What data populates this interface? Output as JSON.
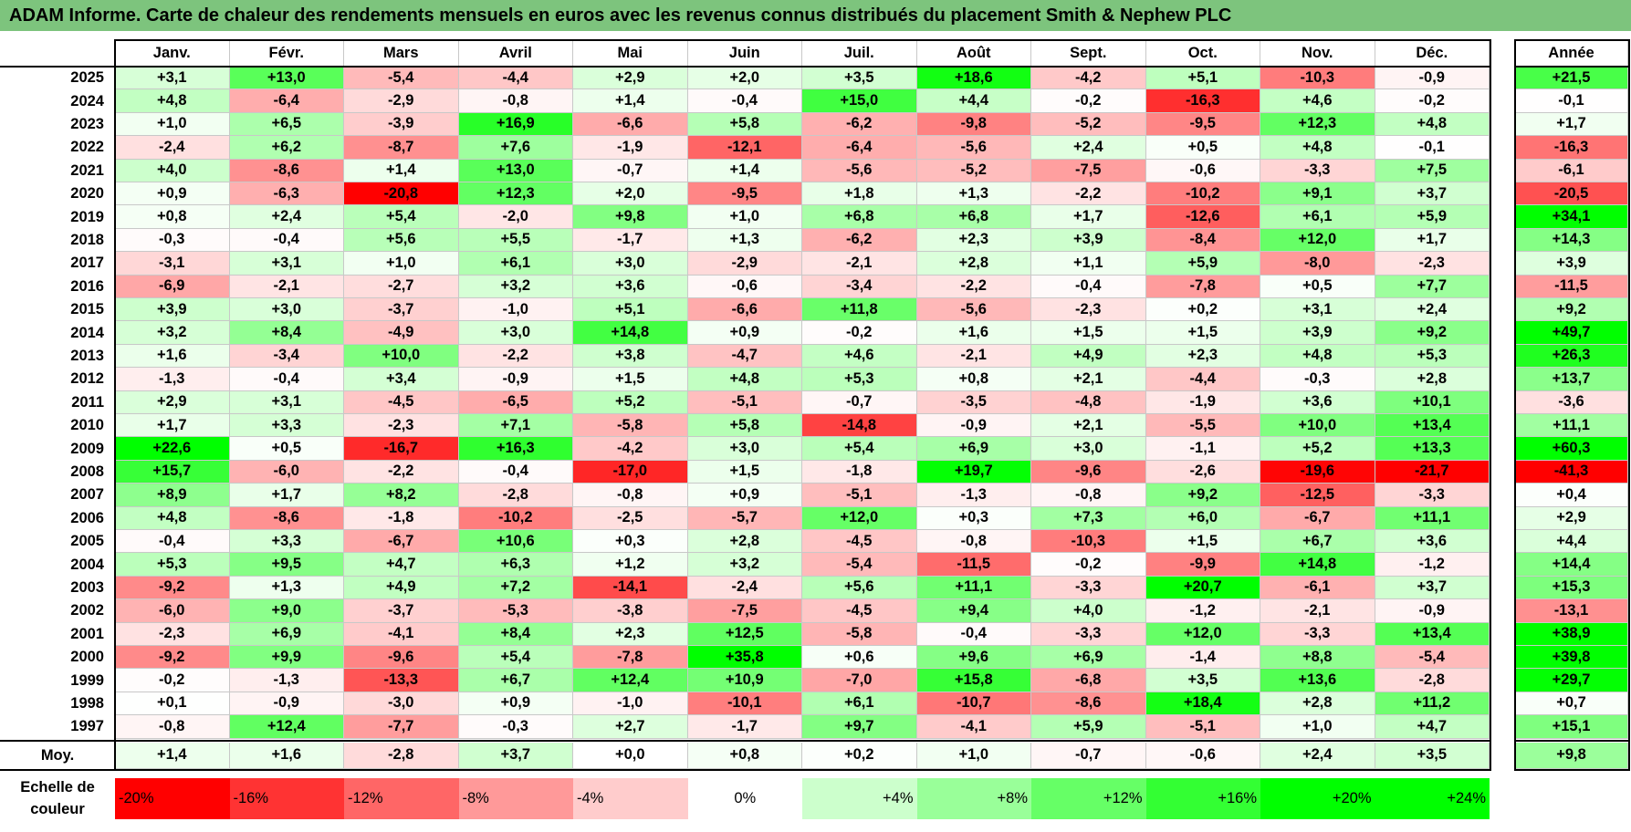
{
  "title": "ADAM Informe. Carte de chaleur des rendements mensuels en euros avec les revenus connus distribués du placement Smith & Nephew PLC",
  "months": [
    "Janv.",
    "Févr.",
    "Mars",
    "Avril",
    "Mai",
    "Juin",
    "Juil.",
    "Août",
    "Sept.",
    "Oct.",
    "Nov.",
    "Déc."
  ],
  "year_col_label": "Année",
  "avg_label": "Moy.",
  "legend_label": "Echelle de couleur",
  "chart_data": {
    "type": "heatmap",
    "title": "ADAM Informe. Carte de chaleur des rendements mensuels en euros avec les revenus connus distribués du placement Smith & Nephew PLC",
    "xlabel": "",
    "ylabel": "",
    "rows": [
      {
        "year": "2025",
        "values": [
          "+3,1",
          "+13,0",
          "-5,4",
          "-4,4",
          "+2,9",
          "+2,0",
          "+3,5",
          "+18,6",
          "-4,2",
          "+5,1",
          "-10,3",
          "-0,9"
        ],
        "annual": "+21,5"
      },
      {
        "year": "2024",
        "values": [
          "+4,8",
          "-6,4",
          "-2,9",
          "-0,8",
          "+1,4",
          "-0,4",
          "+15,0",
          "+4,4",
          "-0,2",
          "-16,3",
          "+4,6",
          "-0,2"
        ],
        "annual": "-0,1"
      },
      {
        "year": "2023",
        "values": [
          "+1,0",
          "+6,5",
          "-3,9",
          "+16,9",
          "-6,6",
          "+5,8",
          "-6,2",
          "-9,8",
          "-5,2",
          "-9,5",
          "+12,3",
          "+4,8"
        ],
        "annual": "+1,7"
      },
      {
        "year": "2022",
        "values": [
          "-2,4",
          "+6,2",
          "-8,7",
          "+7,6",
          "-1,9",
          "-12,1",
          "-6,4",
          "-5,6",
          "+2,4",
          "+0,5",
          "+4,8",
          "-0,1"
        ],
        "annual": "-16,3"
      },
      {
        "year": "2021",
        "values": [
          "+4,0",
          "-8,6",
          "+1,4",
          "+13,0",
          "-0,7",
          "+1,4",
          "-5,6",
          "-5,2",
          "-7,5",
          "-0,6",
          "-3,3",
          "+7,5"
        ],
        "annual": "-6,1"
      },
      {
        "year": "2020",
        "values": [
          "+0,9",
          "-6,3",
          "-20,8",
          "+12,3",
          "+2,0",
          "-9,5",
          "+1,8",
          "+1,3",
          "-2,2",
          "-10,2",
          "+9,1",
          "+3,7"
        ],
        "annual": "-20,5"
      },
      {
        "year": "2019",
        "values": [
          "+0,8",
          "+2,4",
          "+5,4",
          "-2,0",
          "+9,8",
          "+1,0",
          "+6,8",
          "+6,8",
          "+1,7",
          "-12,6",
          "+6,1",
          "+5,9"
        ],
        "annual": "+34,1"
      },
      {
        "year": "2018",
        "values": [
          "-0,3",
          "-0,4",
          "+5,6",
          "+5,5",
          "-1,7",
          "+1,3",
          "-6,2",
          "+2,3",
          "+3,9",
          "-8,4",
          "+12,0",
          "+1,7"
        ],
        "annual": "+14,3"
      },
      {
        "year": "2017",
        "values": [
          "-3,1",
          "+3,1",
          "+1,0",
          "+6,1",
          "+3,0",
          "-2,9",
          "-2,1",
          "+2,8",
          "+1,1",
          "+5,9",
          "-8,0",
          "-2,3"
        ],
        "annual": "+3,9"
      },
      {
        "year": "2016",
        "values": [
          "-6,9",
          "-2,1",
          "-2,7",
          "+3,2",
          "+3,6",
          "-0,6",
          "-3,4",
          "-2,2",
          "-0,4",
          "-7,8",
          "+0,5",
          "+7,7"
        ],
        "annual": "-11,5"
      },
      {
        "year": "2015",
        "values": [
          "+3,9",
          "+3,0",
          "-3,7",
          "-1,0",
          "+5,1",
          "-6,6",
          "+11,8",
          "-5,6",
          "-2,3",
          "+0,2",
          "+3,1",
          "+2,4"
        ],
        "annual": "+9,2"
      },
      {
        "year": "2014",
        "values": [
          "+3,2",
          "+8,4",
          "-4,9",
          "+3,0",
          "+14,8",
          "+0,9",
          "-0,2",
          "+1,6",
          "+1,5",
          "+1,5",
          "+3,9",
          "+9,2"
        ],
        "annual": "+49,7"
      },
      {
        "year": "2013",
        "values": [
          "+1,6",
          "-3,4",
          "+10,0",
          "-2,2",
          "+3,8",
          "-4,7",
          "+4,6",
          "-2,1",
          "+4,9",
          "+2,3",
          "+4,8",
          "+5,3"
        ],
        "annual": "+26,3"
      },
      {
        "year": "2012",
        "values": [
          "-1,3",
          "-0,4",
          "+3,4",
          "-0,9",
          "+1,5",
          "+4,8",
          "+5,3",
          "+0,8",
          "+2,1",
          "-4,4",
          "-0,3",
          "+2,8"
        ],
        "annual": "+13,7"
      },
      {
        "year": "2011",
        "values": [
          "+2,9",
          "+3,1",
          "-4,5",
          "-6,5",
          "+5,2",
          "-5,1",
          "-0,7",
          "-3,5",
          "-4,8",
          "-1,9",
          "+3,6",
          "+10,1"
        ],
        "annual": "-3,6"
      },
      {
        "year": "2010",
        "values": [
          "+1,7",
          "+3,3",
          "-2,3",
          "+7,1",
          "-5,8",
          "+5,8",
          "-14,8",
          "-0,9",
          "+2,1",
          "-5,5",
          "+10,0",
          "+13,4"
        ],
        "annual": "+11,1"
      },
      {
        "year": "2009",
        "values": [
          "+22,6",
          "+0,5",
          "-16,7",
          "+16,3",
          "-4,2",
          "+3,0",
          "+5,4",
          "+6,9",
          "+3,0",
          "-1,1",
          "+5,2",
          "+13,3"
        ],
        "annual": "+60,3"
      },
      {
        "year": "2008",
        "values": [
          "+15,7",
          "-6,0",
          "-2,2",
          "-0,4",
          "-17,0",
          "+1,5",
          "-1,8",
          "+19,7",
          "-9,6",
          "-2,6",
          "-19,6",
          "-21,7"
        ],
        "annual": "-41,3"
      },
      {
        "year": "2007",
        "values": [
          "+8,9",
          "+1,7",
          "+8,2",
          "-2,8",
          "-0,8",
          "+0,9",
          "-5,1",
          "-1,3",
          "-0,8",
          "+9,2",
          "-12,5",
          "-3,3"
        ],
        "annual": "+0,4"
      },
      {
        "year": "2006",
        "values": [
          "+4,8",
          "-8,6",
          "-1,8",
          "-10,2",
          "-2,5",
          "-5,7",
          "+12,0",
          "+0,3",
          "+7,3",
          "+6,0",
          "-6,7",
          "+11,1"
        ],
        "annual": "+2,9"
      },
      {
        "year": "2005",
        "values": [
          "-0,4",
          "+3,3",
          "-6,7",
          "+10,6",
          "+0,3",
          "+2,8",
          "-4,5",
          "-0,8",
          "-10,3",
          "+1,5",
          "+6,7",
          "+3,6"
        ],
        "annual": "+4,4"
      },
      {
        "year": "2004",
        "values": [
          "+5,3",
          "+9,5",
          "+4,7",
          "+6,3",
          "+1,2",
          "+3,2",
          "-5,4",
          "-11,5",
          "-0,2",
          "-9,9",
          "+14,8",
          "-1,2"
        ],
        "annual": "+14,4"
      },
      {
        "year": "2003",
        "values": [
          "-9,2",
          "+1,3",
          "+4,9",
          "+7,2",
          "-14,1",
          "-2,4",
          "+5,6",
          "+11,1",
          "-3,3",
          "+20,7",
          "-6,1",
          "+3,7"
        ],
        "annual": "+15,3"
      },
      {
        "year": "2002",
        "values": [
          "-6,0",
          "+9,0",
          "-3,7",
          "-5,3",
          "-3,8",
          "-7,5",
          "-4,5",
          "+9,4",
          "+4,0",
          "-1,2",
          "-2,1",
          "-0,9"
        ],
        "annual": "-13,1"
      },
      {
        "year": "2001",
        "values": [
          "-2,3",
          "+6,9",
          "-4,1",
          "+8,4",
          "+2,3",
          "+12,5",
          "-5,8",
          "-0,4",
          "-3,3",
          "+12,0",
          "-3,3",
          "+13,4"
        ],
        "annual": "+38,9"
      },
      {
        "year": "2000",
        "values": [
          "-9,2",
          "+9,9",
          "-9,6",
          "+5,4",
          "-7,8",
          "+35,8",
          "+0,6",
          "+9,6",
          "+6,9",
          "-1,4",
          "+8,8",
          "-5,4"
        ],
        "annual": "+39,8"
      },
      {
        "year": "1999",
        "values": [
          "-0,2",
          "-1,3",
          "-13,3",
          "+6,7",
          "+12,4",
          "+10,9",
          "-7,0",
          "+15,8",
          "-6,8",
          "+3,5",
          "+13,6",
          "-2,8"
        ],
        "annual": "+29,7"
      },
      {
        "year": "1998",
        "values": [
          "+0,1",
          "-0,9",
          "-3,0",
          "+0,9",
          "-1,0",
          "-10,1",
          "+6,1",
          "-10,7",
          "-8,6",
          "+18,4",
          "+2,8",
          "+11,2"
        ],
        "annual": "+0,7"
      },
      {
        "year": "1997",
        "values": [
          "-0,8",
          "+12,4",
          "-7,7",
          "-0,3",
          "+2,7",
          "-1,7",
          "+9,7",
          "-4,1",
          "+5,9",
          "-5,1",
          "+1,0",
          "+4,7"
        ],
        "annual": "+15,1"
      }
    ],
    "averages": [
      "+1,4",
      "+1,6",
      "-2,8",
      "+3,7",
      "+0,0",
      "+0,8",
      "+0,2",
      "+1,0",
      "-0,7",
      "-0,6",
      "+2,4",
      "+3,5"
    ],
    "average_annual": "+9,8",
    "legend": [
      "-20%",
      "-16%",
      "-12%",
      "-8%",
      "-4%",
      "0%",
      "+4%",
      "+8%",
      "+12%",
      "+16%",
      "+20%",
      "+24%"
    ]
  }
}
